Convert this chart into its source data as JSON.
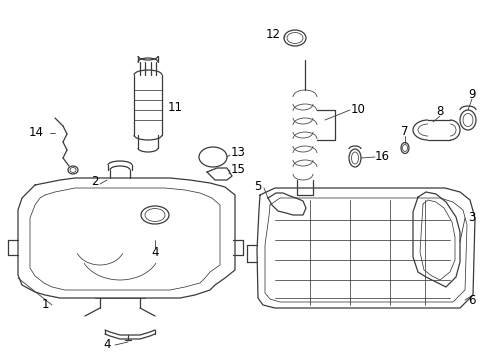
{
  "bg_color": "#ffffff",
  "line_color": "#3a3a3a",
  "text_color": "#000000",
  "figsize": [
    4.89,
    3.6
  ],
  "dpi": 100,
  "font_size": 8.5,
  "lw": 0.9,
  "lw_thin": 0.55,
  "lw_thick": 1.3
}
